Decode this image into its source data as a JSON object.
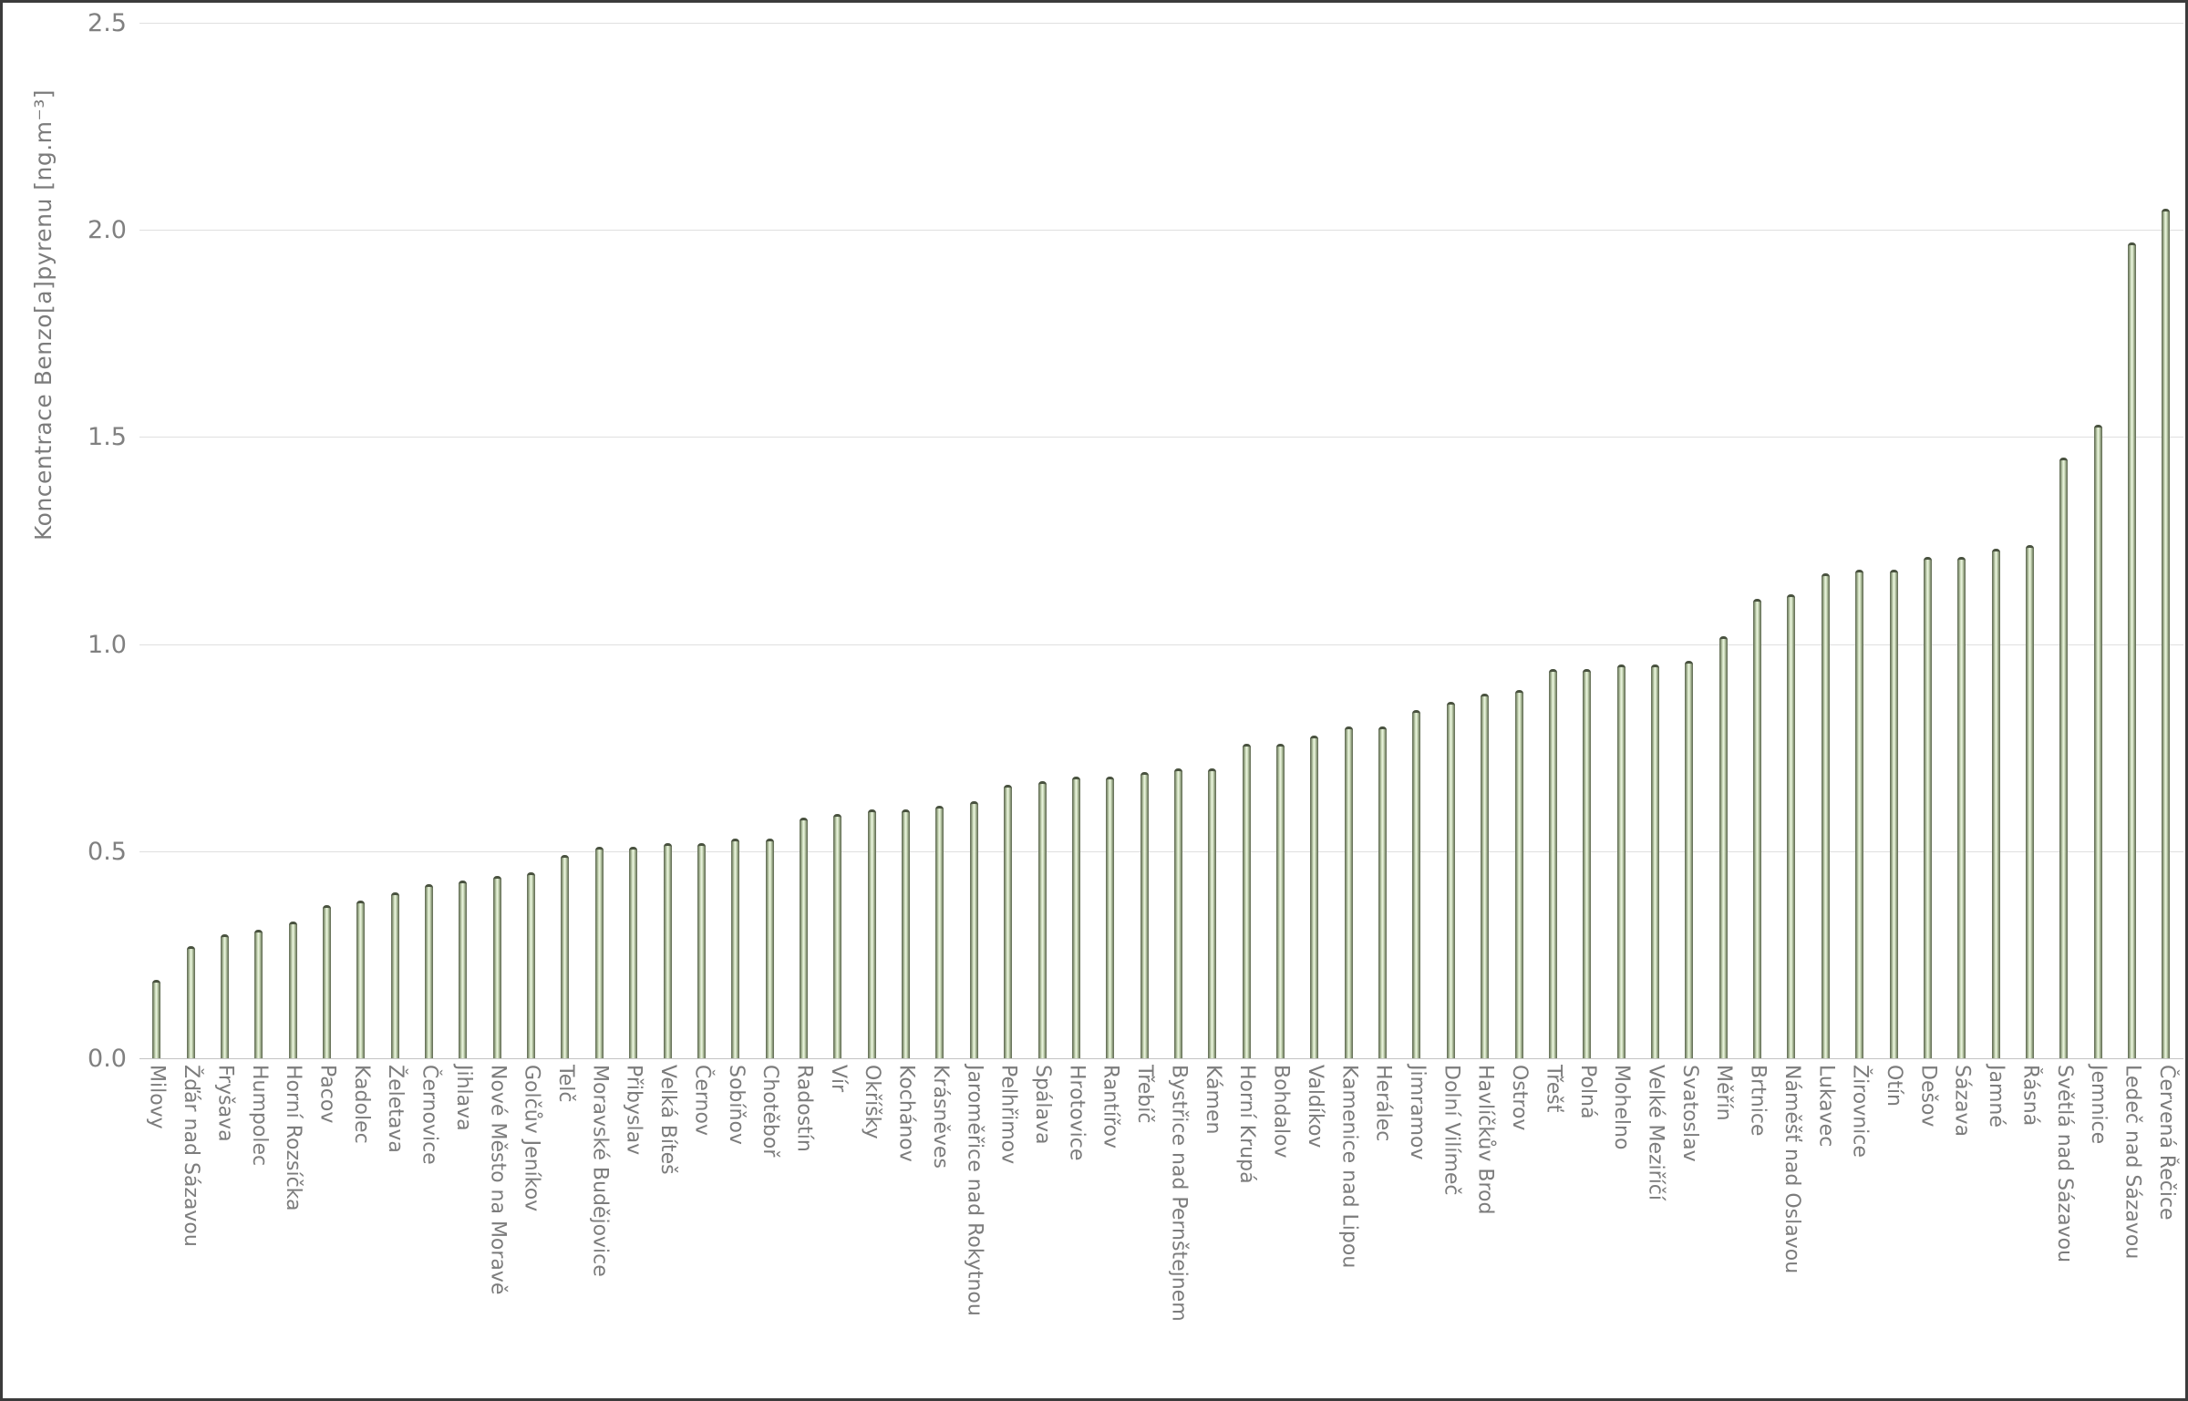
{
  "chart_data": {
    "type": "bar",
    "title": "",
    "xlabel": "",
    "ylabel": "Koncentrace Benzo[a]pyrenu [ng.m⁻³]",
    "ylim": [
      0,
      2.5
    ],
    "yticks": [
      "0.0",
      "0.5",
      "1.0",
      "1.5",
      "2.0",
      "2.5"
    ],
    "grid": "horizontal-light-gray",
    "legend": "none",
    "bar_fill_center": "#edf4e3",
    "bar_fill_mid": "#cfdfbc",
    "bar_edge_color": "#5e6852",
    "bar_cap_color": "#49523f",
    "frame_color": "#3b3b3b",
    "axis_text_color": "#7c7c7c",
    "categories": [
      "Milovy",
      "Žďár nad Sázavou",
      "Fryšava",
      "Humpolec",
      "Horní Rozsíčka",
      "Pacov",
      "Kadolec",
      "Želetava",
      "Černovice",
      "Jihlava",
      "Nové Město na Moravě",
      "Golčův Jeníkov",
      "Telč",
      "Moravské Budějovice",
      "Přibyslav",
      "Velká Bíteš",
      "Černov",
      "Sobíňov",
      "Chotěboř",
      "Radostín",
      "Vír",
      "Okříšky",
      "Kochánov",
      "Krásněves",
      "Jaroměřice nad Rokytnou",
      "Pelhřimov",
      "Spálava",
      "Hrotovice",
      "Rantířov",
      "Třebíč",
      "Bystřice nad Pernštejnem",
      "Kámen",
      "Horní Krupá",
      "Bohdalov",
      "Valdíkov",
      "Kamenice nad Lipou",
      "Herálec",
      "Jimramov",
      "Dolní Vilímeč",
      "Havlíčkův Brod",
      "Ostrov",
      "Třešť",
      "Polná",
      "Mohelno",
      "Velké Meziříčí",
      "Svatoslav",
      "Měřín",
      "Brtnice",
      "Náměšť nad Oslavou",
      "Lukavec",
      "Žirovnice",
      "Otín",
      "Dešov",
      "Sázava",
      "Jamné",
      "Řásná",
      "Světlá nad Sázavou",
      "Jemnice",
      "Ledeč nad Sázavou",
      "Červená Řečice"
    ],
    "values": [
      0.19,
      0.27,
      0.3,
      0.31,
      0.33,
      0.37,
      0.38,
      0.4,
      0.42,
      0.43,
      0.44,
      0.45,
      0.49,
      0.51,
      0.51,
      0.52,
      0.52,
      0.53,
      0.53,
      0.58,
      0.59,
      0.6,
      0.6,
      0.61,
      0.62,
      0.66,
      0.67,
      0.68,
      0.68,
      0.69,
      0.7,
      0.7,
      0.76,
      0.76,
      0.78,
      0.8,
      0.8,
      0.84,
      0.86,
      0.88,
      0.89,
      0.94,
      0.94,
      0.95,
      0.95,
      0.96,
      1.02,
      1.11,
      1.12,
      1.17,
      1.18,
      1.18,
      1.21,
      1.21,
      1.23,
      1.24,
      1.45,
      1.53,
      1.97,
      2.05
    ]
  }
}
